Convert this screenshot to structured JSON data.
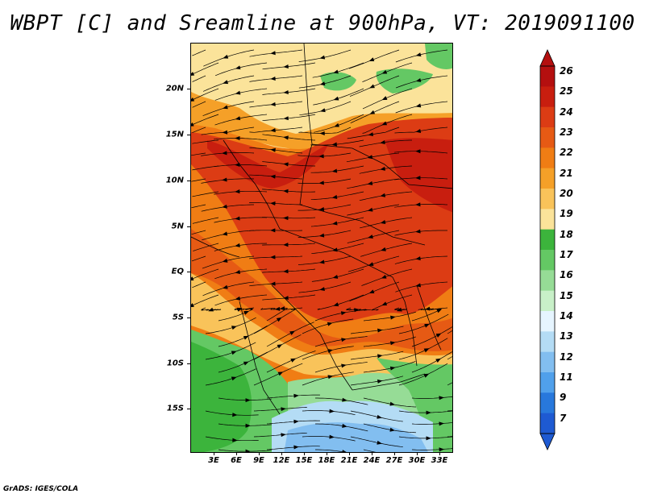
{
  "title": "WBPT [C] and Sreamline at 900hPa, VT: 2019091100",
  "footer": "GrADS: IGES/COLA",
  "lat_labels": [
    "20N",
    "15N",
    "10N",
    "5N",
    "EQ",
    "5S",
    "10S",
    "15S"
  ],
  "lon_labels": [
    "3E",
    "6E",
    "9E",
    "12E",
    "15E",
    "18E",
    "21E",
    "24E",
    "27E",
    "30E",
    "33E"
  ],
  "colorbar": {
    "labels": [
      "26",
      "25",
      "24",
      "23",
      "22",
      "21",
      "20",
      "19",
      "18",
      "17",
      "16",
      "15",
      "14",
      "13",
      "12",
      "11",
      "9",
      "7"
    ],
    "colors": [
      "#b40f0f",
      "#c81e0f",
      "#dc3c14",
      "#e65a14",
      "#f07d14",
      "#f5a028",
      "#f9c35a",
      "#fbe39a",
      "#3cb43c",
      "#64c864",
      "#96dc96",
      "#c8f0c8",
      "#e6f5ff",
      "#b4dcf5",
      "#82bef0",
      "#50a0eb",
      "#2878dc",
      "#1e5ad2"
    ]
  },
  "map_colors": {
    "red_dark": "#c81e0f",
    "red": "#dc3c14",
    "orange_red": "#e65a14",
    "orange": "#f07d14",
    "orange_light": "#f5a028",
    "tan": "#f9c35a",
    "yellow": "#fbe39a",
    "green_dark": "#3cb43c",
    "green": "#64c864",
    "green_light": "#96dc96",
    "blue_light": "#b4dcf5",
    "blue": "#82bef0"
  }
}
